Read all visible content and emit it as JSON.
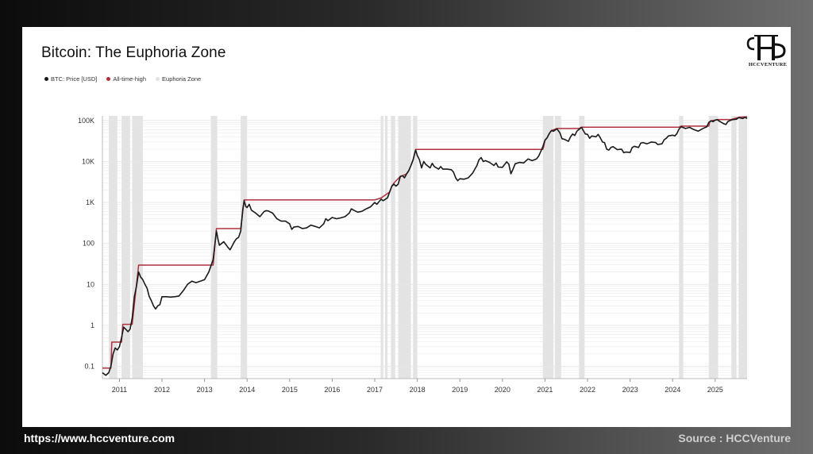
{
  "title": "Bitcoin: The Euphoria Zone",
  "legend": {
    "price": "BTC: Price [USD]",
    "ath": "All-time-high",
    "zone": "Euphoria Zone"
  },
  "logo_text": "HCCVENTURE",
  "footer": {
    "url": "https://www.hccventure.com",
    "source": "Source : HCCVenture"
  },
  "colors": {
    "price": "#1a1a1a",
    "ath": "#b0303e",
    "zone": "#e3e3e3",
    "grid": "#e6e6e6"
  },
  "chart_data": {
    "type": "line",
    "yscale": "log",
    "ylim": [
      0.05,
      130000
    ],
    "xlim": [
      2010.6,
      2025.75
    ],
    "y_ticks": [
      {
        "value": 0.1,
        "label": "0.1"
      },
      {
        "value": 1,
        "label": "1"
      },
      {
        "value": 10,
        "label": "10"
      },
      {
        "value": 100,
        "label": "100"
      },
      {
        "value": 1000,
        "label": "1K"
      },
      {
        "value": 10000,
        "label": "10K"
      },
      {
        "value": 100000,
        "label": "100K"
      }
    ],
    "x_ticks": [
      "2011",
      "2012",
      "2013",
      "2014",
      "2015",
      "2016",
      "2017",
      "2018",
      "2019",
      "2020",
      "2021",
      "2022",
      "2023",
      "2024",
      "2025"
    ],
    "series": [
      {
        "name": "BTC: Price [USD]",
        "points": [
          [
            2010.6,
            0.07
          ],
          [
            2010.68,
            0.06
          ],
          [
            2010.75,
            0.07
          ],
          [
            2010.8,
            0.1
          ],
          [
            2010.85,
            0.2
          ],
          [
            2010.9,
            0.28
          ],
          [
            2010.95,
            0.25
          ],
          [
            2011.0,
            0.3
          ],
          [
            2011.05,
            0.5
          ],
          [
            2011.1,
            0.9
          ],
          [
            2011.15,
            0.8
          ],
          [
            2011.2,
            0.7
          ],
          [
            2011.25,
            0.8
          ],
          [
            2011.3,
            1.5
          ],
          [
            2011.35,
            5
          ],
          [
            2011.4,
            9
          ],
          [
            2011.45,
            20
          ],
          [
            2011.5,
            15
          ],
          [
            2011.55,
            13
          ],
          [
            2011.6,
            10
          ],
          [
            2011.65,
            8
          ],
          [
            2011.7,
            5
          ],
          [
            2011.75,
            4
          ],
          [
            2011.8,
            3
          ],
          [
            2011.85,
            2.5
          ],
          [
            2011.9,
            3
          ],
          [
            2011.95,
            3.2
          ],
          [
            2012.0,
            5
          ],
          [
            2012.1,
            5
          ],
          [
            2012.2,
            4.9
          ],
          [
            2012.3,
            5
          ],
          [
            2012.4,
            5.2
          ],
          [
            2012.5,
            7
          ],
          [
            2012.6,
            10
          ],
          [
            2012.7,
            12
          ],
          [
            2012.8,
            11
          ],
          [
            2012.9,
            12
          ],
          [
            2013.0,
            13
          ],
          [
            2013.1,
            20
          ],
          [
            2013.2,
            40
          ],
          [
            2013.28,
            200
          ],
          [
            2013.32,
            120
          ],
          [
            2013.35,
            90
          ],
          [
            2013.45,
            110
          ],
          [
            2013.55,
            80
          ],
          [
            2013.6,
            70
          ],
          [
            2013.7,
            110
          ],
          [
            2013.75,
            130
          ],
          [
            2013.8,
            140
          ],
          [
            2013.85,
            200
          ],
          [
            2013.9,
            700
          ],
          [
            2013.93,
            1100
          ],
          [
            2013.97,
            800
          ],
          [
            2014.0,
            750
          ],
          [
            2014.05,
            900
          ],
          [
            2014.1,
            650
          ],
          [
            2014.2,
            550
          ],
          [
            2014.3,
            450
          ],
          [
            2014.4,
            600
          ],
          [
            2014.45,
            630
          ],
          [
            2014.5,
            620
          ],
          [
            2014.6,
            550
          ],
          [
            2014.7,
            400
          ],
          [
            2014.8,
            350
          ],
          [
            2014.9,
            350
          ],
          [
            2015.0,
            300
          ],
          [
            2015.05,
            220
          ],
          [
            2015.1,
            250
          ],
          [
            2015.2,
            260
          ],
          [
            2015.3,
            230
          ],
          [
            2015.4,
            240
          ],
          [
            2015.5,
            280
          ],
          [
            2015.6,
            260
          ],
          [
            2015.7,
            240
          ],
          [
            2015.8,
            300
          ],
          [
            2015.85,
            400
          ],
          [
            2015.9,
            360
          ],
          [
            2016.0,
            430
          ],
          [
            2016.1,
            400
          ],
          [
            2016.2,
            420
          ],
          [
            2016.3,
            450
          ],
          [
            2016.4,
            550
          ],
          [
            2016.45,
            700
          ],
          [
            2016.5,
            650
          ],
          [
            2016.6,
            580
          ],
          [
            2016.7,
            610
          ],
          [
            2016.8,
            700
          ],
          [
            2016.9,
            780
          ],
          [
            2017.0,
            1000
          ],
          [
            2017.05,
            900
          ],
          [
            2017.1,
            1050
          ],
          [
            2017.15,
            1200
          ],
          [
            2017.2,
            1100
          ],
          [
            2017.3,
            1300
          ],
          [
            2017.35,
            1800
          ],
          [
            2017.4,
            2500
          ],
          [
            2017.45,
            2800
          ],
          [
            2017.5,
            2500
          ],
          [
            2017.55,
            2800
          ],
          [
            2017.6,
            4300
          ],
          [
            2017.65,
            4500
          ],
          [
            2017.7,
            4000
          ],
          [
            2017.75,
            5000
          ],
          [
            2017.8,
            6000
          ],
          [
            2017.85,
            8000
          ],
          [
            2017.9,
            11000
          ],
          [
            2017.96,
            19000
          ],
          [
            2018.0,
            14000
          ],
          [
            2018.05,
            11000
          ],
          [
            2018.1,
            7000
          ],
          [
            2018.15,
            10000
          ],
          [
            2018.2,
            8500
          ],
          [
            2018.3,
            7000
          ],
          [
            2018.35,
            9000
          ],
          [
            2018.4,
            7500
          ],
          [
            2018.5,
            6500
          ],
          [
            2018.55,
            7500
          ],
          [
            2018.6,
            6500
          ],
          [
            2018.7,
            6500
          ],
          [
            2018.8,
            6300
          ],
          [
            2018.85,
            5500
          ],
          [
            2018.9,
            4000
          ],
          [
            2018.95,
            3400
          ],
          [
            2019.0,
            3800
          ],
          [
            2019.1,
            3700
          ],
          [
            2019.2,
            4000
          ],
          [
            2019.3,
            5200
          ],
          [
            2019.4,
            8000
          ],
          [
            2019.45,
            11000
          ],
          [
            2019.5,
            12500
          ],
          [
            2019.55,
            10000
          ],
          [
            2019.6,
            10500
          ],
          [
            2019.7,
            9500
          ],
          [
            2019.8,
            8000
          ],
          [
            2019.85,
            9200
          ],
          [
            2019.9,
            7300
          ],
          [
            2020.0,
            7200
          ],
          [
            2020.1,
            9800
          ],
          [
            2020.15,
            8600
          ],
          [
            2020.2,
            5000
          ],
          [
            2020.25,
            6500
          ],
          [
            2020.3,
            8800
          ],
          [
            2020.4,
            9500
          ],
          [
            2020.5,
            9200
          ],
          [
            2020.6,
            11500
          ],
          [
            2020.7,
            10500
          ],
          [
            2020.8,
            11500
          ],
          [
            2020.85,
            13500
          ],
          [
            2020.9,
            17500
          ],
          [
            2020.95,
            23000
          ],
          [
            2021.0,
            33000
          ],
          [
            2021.05,
            38000
          ],
          [
            2021.1,
            48000
          ],
          [
            2021.15,
            57000
          ],
          [
            2021.2,
            55000
          ],
          [
            2021.28,
            63000
          ],
          [
            2021.35,
            50000
          ],
          [
            2021.4,
            36000
          ],
          [
            2021.45,
            35000
          ],
          [
            2021.5,
            33000
          ],
          [
            2021.55,
            31000
          ],
          [
            2021.6,
            40000
          ],
          [
            2021.65,
            47000
          ],
          [
            2021.7,
            43000
          ],
          [
            2021.75,
            55000
          ],
          [
            2021.8,
            61000
          ],
          [
            2021.86,
            68000
          ],
          [
            2021.9,
            57000
          ],
          [
            2021.95,
            47000
          ],
          [
            2022.0,
            46000
          ],
          [
            2022.05,
            37000
          ],
          [
            2022.1,
            42000
          ],
          [
            2022.2,
            40000
          ],
          [
            2022.25,
            46000
          ],
          [
            2022.3,
            38000
          ],
          [
            2022.35,
            30000
          ],
          [
            2022.4,
            29000
          ],
          [
            2022.45,
            20000
          ],
          [
            2022.5,
            19000
          ],
          [
            2022.55,
            22000
          ],
          [
            2022.6,
            23000
          ],
          [
            2022.7,
            19500
          ],
          [
            2022.8,
            20000
          ],
          [
            2022.85,
            16500
          ],
          [
            2022.9,
            17000
          ],
          [
            2023.0,
            16600
          ],
          [
            2023.05,
            22000
          ],
          [
            2023.1,
            23500
          ],
          [
            2023.2,
            22000
          ],
          [
            2023.25,
            28000
          ],
          [
            2023.3,
            29000
          ],
          [
            2023.4,
            27000
          ],
          [
            2023.5,
            30000
          ],
          [
            2023.6,
            29000
          ],
          [
            2023.65,
            26000
          ],
          [
            2023.75,
            27000
          ],
          [
            2023.8,
            34000
          ],
          [
            2023.85,
            37000
          ],
          [
            2023.9,
            42000
          ],
          [
            2023.95,
            43000
          ],
          [
            2024.0,
            44000
          ],
          [
            2024.05,
            42000
          ],
          [
            2024.1,
            48000
          ],
          [
            2024.15,
            62000
          ],
          [
            2024.2,
            71000
          ],
          [
            2024.3,
            64000
          ],
          [
            2024.4,
            68000
          ],
          [
            2024.5,
            60000
          ],
          [
            2024.6,
            55000
          ],
          [
            2024.7,
            63000
          ],
          [
            2024.8,
            70000
          ],
          [
            2024.85,
            90000
          ],
          [
            2024.9,
            98000
          ],
          [
            2024.95,
            94000
          ],
          [
            2025.0,
            102000
          ],
          [
            2025.05,
            105000
          ],
          [
            2025.1,
            96000
          ],
          [
            2025.2,
            84000
          ],
          [
            2025.25,
            80000
          ],
          [
            2025.3,
            95000
          ],
          [
            2025.4,
            105000
          ],
          [
            2025.5,
            108000
          ],
          [
            2025.55,
            118000
          ],
          [
            2025.6,
            115000
          ],
          [
            2025.65,
            112000
          ],
          [
            2025.7,
            120000
          ],
          [
            2025.75,
            112000
          ]
        ]
      },
      {
        "name": "All-time-high",
        "points": [
          [
            2010.6,
            0.09
          ],
          [
            2010.8,
            0.09
          ],
          [
            2010.82,
            0.39
          ],
          [
            2011.05,
            0.39
          ],
          [
            2011.08,
            1.06
          ],
          [
            2011.3,
            1.06
          ],
          [
            2011.45,
            29.6
          ],
          [
            2013.2,
            29.6
          ],
          [
            2013.28,
            230
          ],
          [
            2013.85,
            230
          ],
          [
            2013.93,
            1150
          ],
          [
            2017.0,
            1150
          ],
          [
            2017.15,
            1290
          ],
          [
            2017.35,
            1800
          ],
          [
            2017.4,
            2500
          ],
          [
            2017.45,
            2950
          ],
          [
            2017.6,
            4350
          ],
          [
            2017.65,
            4500
          ],
          [
            2017.75,
            5000
          ],
          [
            2017.8,
            6000
          ],
          [
            2017.85,
            8000
          ],
          [
            2017.9,
            11000
          ],
          [
            2017.96,
            19700
          ],
          [
            2020.95,
            19700
          ],
          [
            2020.97,
            23000
          ],
          [
            2021.0,
            33000
          ],
          [
            2021.05,
            38000
          ],
          [
            2021.1,
            48000
          ],
          [
            2021.15,
            57000
          ],
          [
            2021.28,
            64000
          ],
          [
            2021.8,
            64000
          ],
          [
            2021.86,
            69000
          ],
          [
            2024.15,
            69000
          ],
          [
            2024.2,
            73000
          ],
          [
            2024.85,
            73000
          ],
          [
            2024.87,
            90000
          ],
          [
            2024.9,
            99000
          ],
          [
            2025.0,
            102000
          ],
          [
            2025.05,
            106000
          ],
          [
            2025.38,
            106000
          ],
          [
            2025.4,
            108000
          ],
          [
            2025.55,
            120000
          ],
          [
            2025.75,
            124000
          ]
        ]
      }
    ],
    "euphoria_zones": [
      [
        2010.75,
        2010.95
      ],
      [
        2011.05,
        2011.25
      ],
      [
        2011.3,
        2011.55
      ],
      [
        2013.15,
        2013.3
      ],
      [
        2013.85,
        2014.0
      ],
      [
        2017.14,
        2017.2
      ],
      [
        2017.24,
        2017.3
      ],
      [
        2017.38,
        2017.48
      ],
      [
        2017.55,
        2017.85
      ],
      [
        2017.9,
        2018.0
      ],
      [
        2020.95,
        2021.2
      ],
      [
        2021.23,
        2021.38
      ],
      [
        2021.8,
        2021.93
      ],
      [
        2024.15,
        2024.25
      ],
      [
        2024.85,
        2025.07
      ],
      [
        2025.38,
        2025.5
      ],
      [
        2025.55,
        2025.75
      ]
    ]
  }
}
